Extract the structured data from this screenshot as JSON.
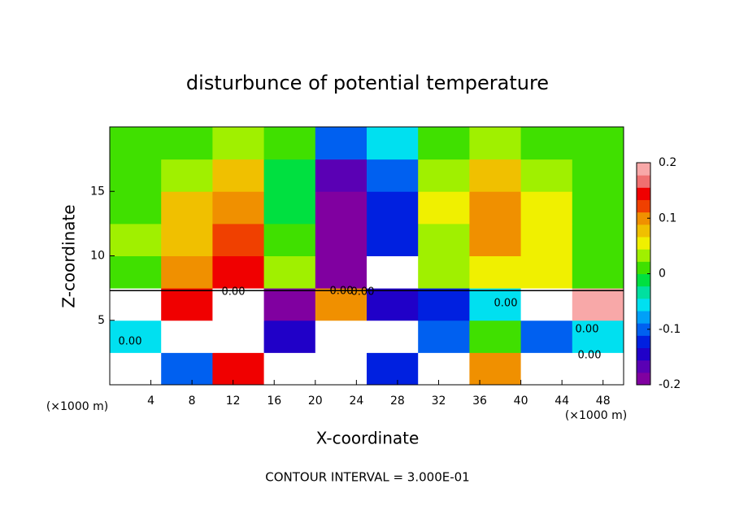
{
  "chart_data": {
    "type": "heatmap",
    "title": "disturbunce of potential temperature",
    "x_label": "X-coordinate",
    "y_label": "Z-coordinate",
    "x_unit": "(×1000 m)",
    "y_unit": "(×1000 m)",
    "footer": "CONTOUR INTERVAL = 3.000E-01",
    "xbins": [
      0,
      5,
      10,
      15,
      20,
      25,
      30,
      35,
      40,
      45,
      50
    ],
    "ybins": [
      0,
      2.5,
      5,
      7.5,
      10,
      12.5,
      15,
      17.5,
      20
    ],
    "values": [
      [
        0.25,
        -0.1,
        0.15,
        0.25,
        0.25,
        -0.12,
        0.25,
        0.1,
        0.25,
        0.25
      ],
      [
        -0.05,
        0.25,
        0.25,
        -0.15,
        0.25,
        0.25,
        -0.1,
        0.0,
        -0.1,
        -0.05
      ],
      [
        0.25,
        0.15,
        0.25,
        -0.18,
        0.1,
        -0.15,
        -0.12,
        -0.05,
        0.25,
        0.2
      ],
      [
        0.02,
        0.1,
        0.15,
        0.03,
        -0.2,
        0.25,
        0.03,
        0.05,
        0.06,
        0.02
      ],
      [
        0.03,
        0.08,
        0.12,
        0.02,
        -0.18,
        -0.13,
        0.04,
        0.1,
        0.06,
        0.02
      ],
      [
        0.0,
        0.07,
        0.09,
        -0.01,
        -0.19,
        -0.12,
        0.05,
        0.11,
        0.05,
        0.0
      ],
      [
        0.01,
        0.04,
        0.07,
        -0.02,
        -0.16,
        -0.1,
        0.04,
        0.08,
        0.03,
        0.0
      ],
      [
        0.02,
        0.02,
        0.04,
        0.0,
        -0.11,
        -0.06,
        0.02,
        0.03,
        0.01,
        0.02
      ]
    ],
    "xlim": [
      0,
      50
    ],
    "ylim": [
      0,
      20
    ],
    "xticks": [
      4,
      8,
      12,
      16,
      20,
      24,
      28,
      32,
      36,
      40,
      44,
      48
    ],
    "yticks": [
      5,
      10,
      15
    ],
    "contour_labels": [
      "0.00",
      "0.00",
      "0.00",
      "0.00",
      "0.00",
      "0.00",
      "0.00"
    ],
    "colorbar": {
      "lim": [
        -0.2,
        0.2
      ],
      "ticks": [
        0.2,
        0.1,
        0,
        -0.1,
        -0.2
      ],
      "colors": [
        "#8000a0",
        "#5a00b4",
        "#2000c8",
        "#0020e0",
        "#0060f0",
        "#00a0f8",
        "#00e0f0",
        "#00e0a0",
        "#00e040",
        "#40e000",
        "#a0f000",
        "#f0f000",
        "#f0c000",
        "#f09000",
        "#f04000",
        "#f00000",
        "#f07070",
        "#f8a8a8"
      ],
      "over_color": "#ffffff"
    }
  }
}
